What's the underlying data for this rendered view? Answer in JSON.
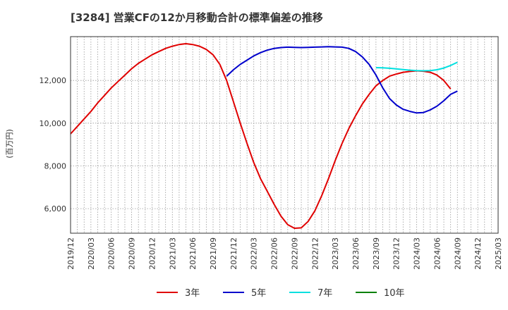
{
  "chart_data": {
    "type": "line",
    "title": "[3284]  営業CFの12か月移動合計の標準偏差の推移",
    "ylabel": "(百万円)",
    "xlabel": "",
    "x_ticks": [
      "2019/12",
      "2020/03",
      "2020/06",
      "2020/09",
      "2020/12",
      "2021/03",
      "2021/06",
      "2021/09",
      "2021/12",
      "2022/03",
      "2022/06",
      "2022/09",
      "2022/12",
      "2023/03",
      "2023/06",
      "2023/09",
      "2023/12",
      "2024/03",
      "2024/06",
      "2024/09",
      "2024/12",
      "2025/03"
    ],
    "y_ticks": [
      6000,
      8000,
      10000,
      12000
    ],
    "y_tick_labels": [
      "6,000",
      "8,000",
      "10,000",
      "12,000"
    ],
    "ylim": [
      4850,
      14050
    ],
    "grid": true,
    "legend_position": "bottom",
    "series": [
      {
        "name": "3年",
        "color": "#e00000",
        "points": [
          [
            "2019/12",
            9500
          ],
          [
            "2020/01",
            9850
          ],
          [
            "2020/02",
            10200
          ],
          [
            "2020/03",
            10550
          ],
          [
            "2020/04",
            10950
          ],
          [
            "2020/05",
            11300
          ],
          [
            "2020/06",
            11650
          ],
          [
            "2020/07",
            11950
          ],
          [
            "2020/08",
            12250
          ],
          [
            "2020/09",
            12550
          ],
          [
            "2020/10",
            12800
          ],
          [
            "2020/11",
            13000
          ],
          [
            "2020/12",
            13200
          ],
          [
            "2021/01",
            13350
          ],
          [
            "2021/02",
            13500
          ],
          [
            "2021/03",
            13600
          ],
          [
            "2021/04",
            13680
          ],
          [
            "2021/05",
            13720
          ],
          [
            "2021/06",
            13680
          ],
          [
            "2021/07",
            13600
          ],
          [
            "2021/08",
            13450
          ],
          [
            "2021/09",
            13200
          ],
          [
            "2021/10",
            12750
          ],
          [
            "2021/11",
            12000
          ],
          [
            "2021/12",
            11000
          ],
          [
            "2022/01",
            10000
          ],
          [
            "2022/02",
            9050
          ],
          [
            "2022/03",
            8150
          ],
          [
            "2022/04",
            7400
          ],
          [
            "2022/05",
            6800
          ],
          [
            "2022/06",
            6200
          ],
          [
            "2022/07",
            5650
          ],
          [
            "2022/08",
            5250
          ],
          [
            "2022/09",
            5080
          ],
          [
            "2022/10",
            5100
          ],
          [
            "2022/11",
            5400
          ],
          [
            "2022/12",
            5900
          ],
          [
            "2023/01",
            6600
          ],
          [
            "2023/02",
            7400
          ],
          [
            "2023/03",
            8250
          ],
          [
            "2023/04",
            9050
          ],
          [
            "2023/05",
            9750
          ],
          [
            "2023/06",
            10350
          ],
          [
            "2023/07",
            10900
          ],
          [
            "2023/08",
            11350
          ],
          [
            "2023/09",
            11750
          ],
          [
            "2023/10",
            12000
          ],
          [
            "2023/11",
            12200
          ],
          [
            "2023/12",
            12300
          ],
          [
            "2024/01",
            12380
          ],
          [
            "2024/02",
            12420
          ],
          [
            "2024/03",
            12450
          ],
          [
            "2024/04",
            12430
          ],
          [
            "2024/05",
            12380
          ],
          [
            "2024/06",
            12250
          ],
          [
            "2024/07",
            12000
          ],
          [
            "2024/08",
            11600
          ]
        ]
      },
      {
        "name": "5年",
        "color": "#0000cc",
        "points": [
          [
            "2021/11",
            12200
          ],
          [
            "2021/12",
            12500
          ],
          [
            "2022/01",
            12750
          ],
          [
            "2022/02",
            12950
          ],
          [
            "2022/03",
            13150
          ],
          [
            "2022/04",
            13300
          ],
          [
            "2022/05",
            13420
          ],
          [
            "2022/06",
            13500
          ],
          [
            "2022/07",
            13540
          ],
          [
            "2022/08",
            13560
          ],
          [
            "2022/09",
            13550
          ],
          [
            "2022/10",
            13540
          ],
          [
            "2022/11",
            13550
          ],
          [
            "2022/12",
            13560
          ],
          [
            "2023/01",
            13570
          ],
          [
            "2023/02",
            13580
          ],
          [
            "2023/03",
            13570
          ],
          [
            "2023/04",
            13560
          ],
          [
            "2023/05",
            13500
          ],
          [
            "2023/06",
            13350
          ],
          [
            "2023/07",
            13100
          ],
          [
            "2023/08",
            12750
          ],
          [
            "2023/09",
            12250
          ],
          [
            "2023/10",
            11650
          ],
          [
            "2023/11",
            11150
          ],
          [
            "2023/12",
            10850
          ],
          [
            "2024/01",
            10650
          ],
          [
            "2024/02",
            10550
          ],
          [
            "2024/03",
            10480
          ],
          [
            "2024/04",
            10500
          ],
          [
            "2024/05",
            10620
          ],
          [
            "2024/06",
            10800
          ],
          [
            "2024/07",
            11050
          ],
          [
            "2024/08",
            11350
          ],
          [
            "2024/09",
            11500
          ]
        ]
      },
      {
        "name": "7年",
        "color": "#00e0e0",
        "points": [
          [
            "2023/09",
            12600
          ],
          [
            "2023/10",
            12590
          ],
          [
            "2023/11",
            12570
          ],
          [
            "2023/12",
            12540
          ],
          [
            "2024/01",
            12510
          ],
          [
            "2024/02",
            12480
          ],
          [
            "2024/03",
            12460
          ],
          [
            "2024/04",
            12450
          ],
          [
            "2024/05",
            12460
          ],
          [
            "2024/06",
            12500
          ],
          [
            "2024/07",
            12580
          ],
          [
            "2024/08",
            12700
          ],
          [
            "2024/09",
            12850
          ]
        ]
      },
      {
        "name": "10年",
        "color": "#008000",
        "points": []
      }
    ]
  }
}
